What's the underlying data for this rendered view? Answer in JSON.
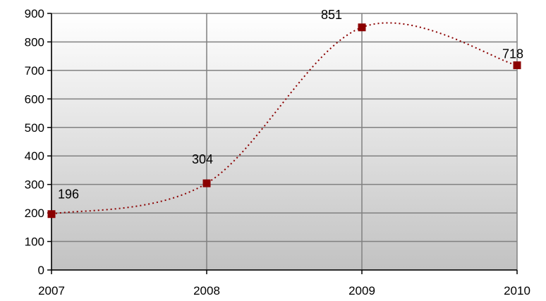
{
  "chart_data": {
    "type": "line",
    "x": [
      "2007",
      "2008",
      "2009",
      "2010"
    ],
    "series": [
      {
        "values": [
          196,
          304,
          851,
          718
        ],
        "color": "#8b0000",
        "line_style": "dotted",
        "smoothed": true,
        "marker": "square"
      }
    ],
    "data_labels": [
      "196",
      "304",
      "851",
      "718"
    ],
    "ylim": [
      0,
      900
    ],
    "yticks": [
      "0",
      "100",
      "200",
      "300",
      "400",
      "500",
      "600",
      "700",
      "800",
      "900"
    ],
    "xticks": [
      "2007",
      "2008",
      "2009",
      "2010"
    ],
    "title": "",
    "xlabel": "",
    "ylabel": "",
    "grid": true,
    "plot_background": "gradient white to gray"
  }
}
